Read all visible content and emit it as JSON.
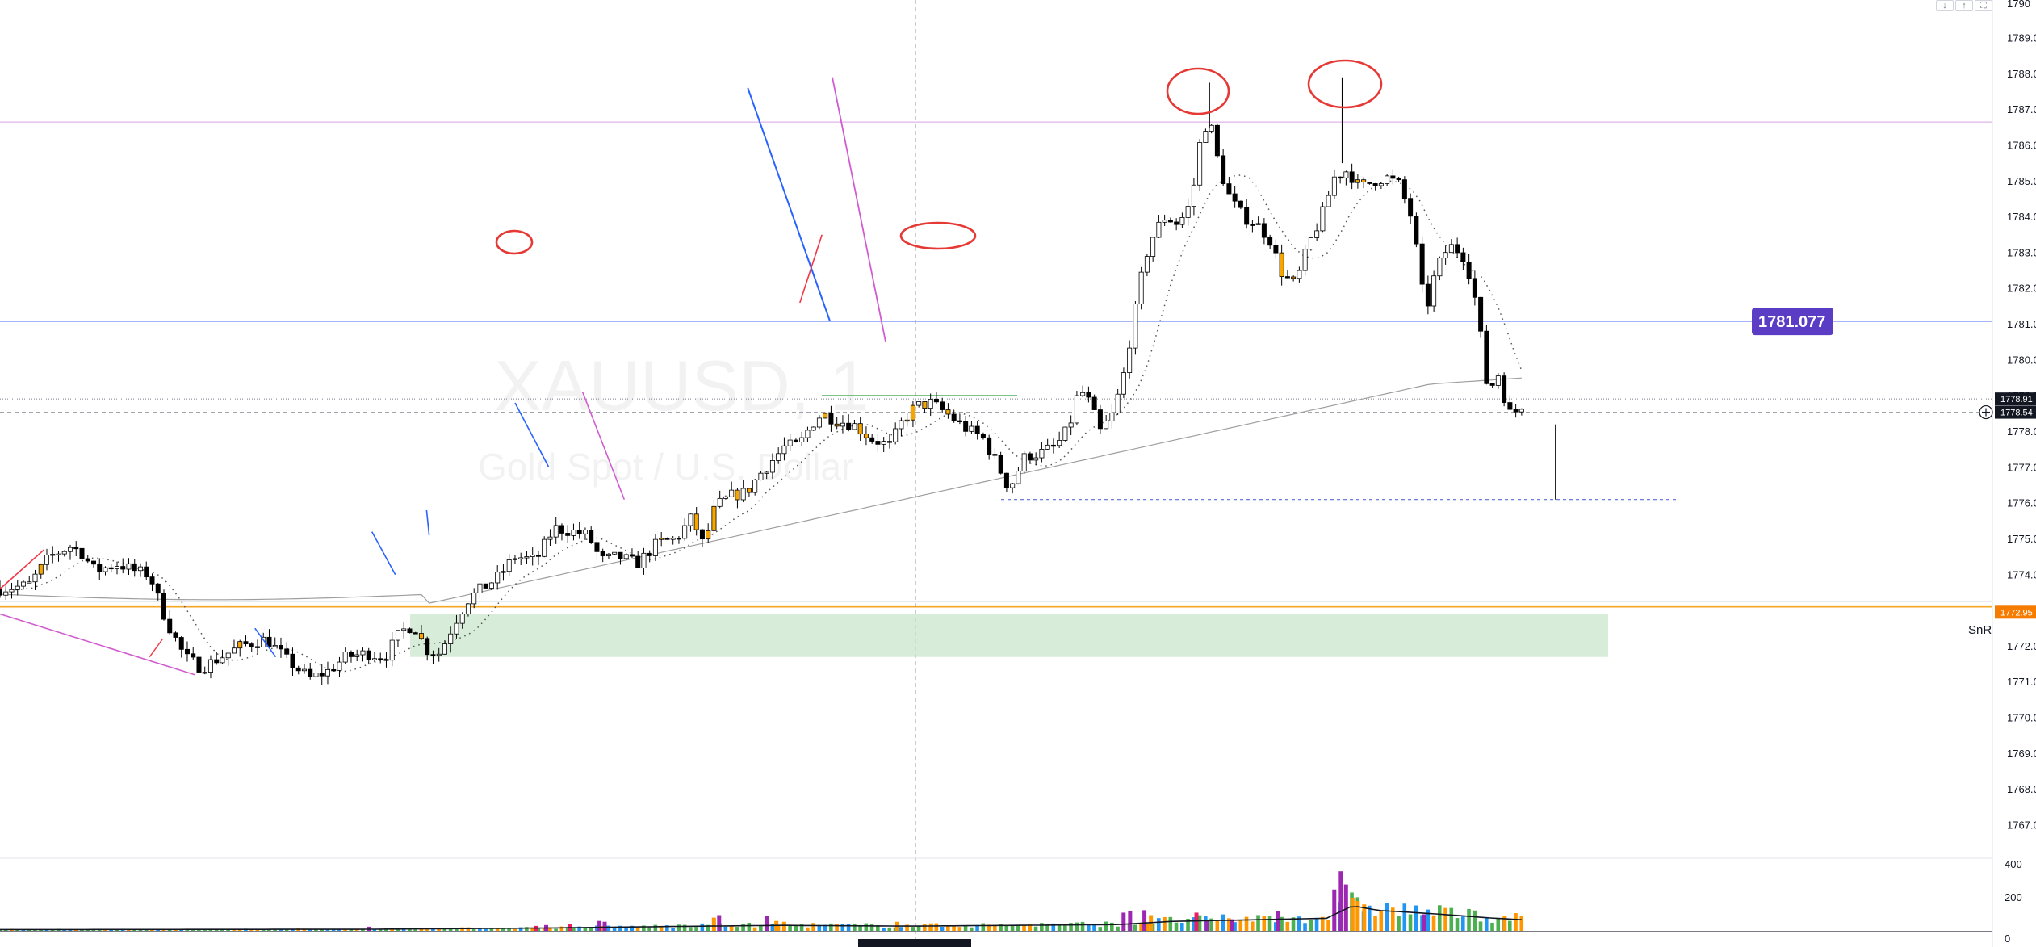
{
  "watermark": {
    "symbol": "XAUUSD, 1",
    "description": "Gold Spot / U.S. Dollar"
  },
  "toolbar": {
    "buttons": [
      {
        "name": "scroll-down-button",
        "icon": "arrow-down-icon",
        "glyph": "↓"
      },
      {
        "name": "scroll-up-button",
        "icon": "arrow-up-icon",
        "glyph": "↑"
      },
      {
        "name": "fullscreen-button",
        "icon": "fullscreen-icon",
        "glyph": "⛶"
      }
    ]
  },
  "colors": {
    "up": "#ffffff",
    "down": "#000000",
    "highlight": "#f7a600",
    "grid_line": "#e0e3eb",
    "blue": "#2962ff",
    "magenta": "#d05cd0",
    "red": "#f23645",
    "orange": "#f57c00",
    "purple": "#5b3cc4",
    "snr_zone": "#c8e6c9",
    "vol_green": "#4caf50",
    "vol_blue": "#2196f3",
    "vol_orange": "#ff9800",
    "vol_purple": "#9c27b0",
    "vol_pink": "#e91e63"
  },
  "chart_data": {
    "type": "candlestick",
    "title": "",
    "symbol": "XAUUSD",
    "interval": "1",
    "description": "Gold Spot / U.S. Dollar",
    "ylim": [
      1766.0,
      1790.0
    ],
    "y_ticks": [
      "1767.00",
      "1768.00",
      "1769.00",
      "1770.00",
      "1771.00",
      "1772.00",
      "1773.00",
      "1774.00",
      "1775.00",
      "1776.00",
      "1777.00",
      "1778.00",
      "1779.00",
      "1780.00",
      "1781.00",
      "1782.00",
      "1783.00",
      "1784.00",
      "1785.00",
      "1786.00",
      "1787.00",
      "1788.00",
      "1789.00"
    ],
    "top_tick_partial": "1790",
    "price_labels": [
      {
        "text": "1781.077",
        "value": 1781.077
      },
      {
        "text": "1778.91",
        "value": 1778.91
      },
      {
        "text": "1778.54",
        "value": 1778.54
      },
      {
        "text": "1772.95",
        "value": 1772.95
      }
    ],
    "horizontal_levels": [
      {
        "value": 1786.65,
        "color": "magenta"
      },
      {
        "value": 1781.077,
        "color": "blue"
      },
      {
        "value": 1778.91,
        "style": "dotted"
      },
      {
        "value": 1778.54,
        "style": "dashed"
      },
      {
        "value": 1773.1,
        "color": "orange"
      }
    ],
    "snr_zone": {
      "label": "SnR",
      "from": 1771.7,
      "to": 1772.9
    },
    "volume_axis_ticks": [
      "0",
      "200",
      "400"
    ],
    "volume_max": 450,
    "anchors": [
      [
        0,
        1773.6
      ],
      [
        22,
        1773.7
      ],
      [
        38,
        1774.5
      ],
      [
        55,
        1774.8
      ],
      [
        63,
        1774.6
      ],
      [
        73,
        1774.1
      ],
      [
        91,
        1774.3
      ],
      [
        104,
        1774.1
      ],
      [
        115,
        1774.0
      ],
      [
        128,
        1772.7
      ],
      [
        142,
        1771.7
      ],
      [
        155,
        1771.4
      ],
      [
        165,
        1771.6
      ],
      [
        185,
        1772.0
      ],
      [
        205,
        1772.2
      ],
      [
        221,
        1771.6
      ],
      [
        238,
        1771.1
      ],
      [
        252,
        1771.3
      ],
      [
        266,
        1771.7
      ],
      [
        282,
        1771.8
      ],
      [
        296,
        1771.7
      ],
      [
        308,
        1772.4
      ],
      [
        318,
        1772.6
      ],
      [
        328,
        1771.9
      ],
      [
        338,
        1771.8
      ],
      [
        350,
        1772.7
      ],
      [
        360,
        1773.3
      ],
      [
        370,
        1773.6
      ],
      [
        382,
        1773.9
      ],
      [
        396,
        1774.5
      ],
      [
        412,
        1774.4
      ],
      [
        426,
        1775.3
      ],
      [
        441,
        1775.2
      ],
      [
        452,
        1775.1
      ],
      [
        462,
        1774.4
      ],
      [
        476,
        1774.5
      ],
      [
        490,
        1774.3
      ],
      [
        506,
        1774.9
      ],
      [
        520,
        1775.0
      ],
      [
        532,
        1775.6
      ],
      [
        541,
        1774.8
      ],
      [
        550,
        1775.9
      ],
      [
        562,
        1776.2
      ],
      [
        574,
        1776.3
      ],
      [
        584,
        1776.8
      ],
      [
        594,
        1777.2
      ],
      [
        604,
        1777.6
      ],
      [
        614,
        1777.6
      ],
      [
        624,
        1778.2
      ],
      [
        632,
        1778.5
      ],
      [
        644,
        1778.3
      ],
      [
        656,
        1778.2
      ],
      [
        670,
        1777.8
      ],
      [
        684,
        1777.6
      ],
      [
        694,
        1778.3
      ],
      [
        704,
        1778.7
      ],
      [
        716,
        1778.8
      ],
      [
        728,
        1778.5
      ],
      [
        742,
        1778.1
      ],
      [
        756,
        1777.8
      ],
      [
        768,
        1777.0
      ],
      [
        776,
        1776.4
      ],
      [
        788,
        1777.3
      ],
      [
        800,
        1777.4
      ],
      [
        812,
        1777.6
      ],
      [
        822,
        1778.1
      ],
      [
        830,
        1779.2
      ],
      [
        838,
        1778.8
      ],
      [
        846,
        1778.0
      ],
      [
        856,
        1778.5
      ],
      [
        864,
        1779.6
      ],
      [
        872,
        1781.2
      ],
      [
        880,
        1782.8
      ],
      [
        888,
        1783.6
      ],
      [
        896,
        1784.0
      ],
      [
        906,
        1783.8
      ],
      [
        916,
        1784.4
      ],
      [
        924,
        1786.4
      ],
      [
        930,
        1786.7
      ],
      [
        938,
        1785.3
      ],
      [
        946,
        1784.5
      ],
      [
        956,
        1784.0
      ],
      [
        966,
        1783.8
      ],
      [
        976,
        1783.4
      ],
      [
        986,
        1782.4
      ],
      [
        996,
        1782.1
      ],
      [
        1006,
        1783.2
      ],
      [
        1016,
        1784.0
      ],
      [
        1026,
        1785.1
      ],
      [
        1036,
        1785.3
      ],
      [
        1046,
        1784.8
      ],
      [
        1056,
        1785.0
      ],
      [
        1066,
        1785.1
      ],
      [
        1076,
        1784.9
      ],
      [
        1086,
        1783.9
      ],
      [
        1096,
        1781.3
      ],
      [
        1104,
        1782.5
      ],
      [
        1114,
        1783.2
      ],
      [
        1124,
        1783.0
      ],
      [
        1132,
        1782.2
      ],
      [
        1138,
        1780.8
      ],
      [
        1144,
        1779.1
      ],
      [
        1152,
        1779.6
      ],
      [
        1160,
        1778.5
      ],
      [
        1168,
        1778.6
      ],
      [
        1172,
        1778.9
      ]
    ],
    "highlight_candles": [
      32,
      186,
      323,
      509,
      537,
      547,
      569,
      577,
      633,
      643,
      664,
      700,
      712,
      730,
      986,
      995,
      1044,
      1049
    ],
    "volume_profile": [
      [
        0,
        8
      ],
      [
        280,
        10
      ],
      [
        420,
        18
      ],
      [
        540,
        30
      ],
      [
        600,
        35
      ],
      [
        700,
        30
      ],
      [
        860,
        40
      ],
      [
        900,
        60
      ],
      [
        1020,
        80
      ],
      [
        1040,
        160
      ],
      [
        1060,
        130
      ],
      [
        1100,
        110
      ],
      [
        1150,
        80
      ],
      [
        1172,
        70
      ]
    ],
    "volume_spikes": [
      [
        284,
        25,
        "purple"
      ],
      [
        412,
        30,
        "pink"
      ],
      [
        420,
        35,
        "purple"
      ],
      [
        438,
        42,
        "pink"
      ],
      [
        461,
        60,
        "purple"
      ],
      [
        465,
        55,
        "purple"
      ],
      [
        549,
        80,
        "orange"
      ],
      [
        553,
        95,
        "purple"
      ],
      [
        590,
        90,
        "purple"
      ],
      [
        597,
        60,
        "orange"
      ],
      [
        603,
        55,
        "orange"
      ],
      [
        690,
        55,
        "orange"
      ],
      [
        716,
        45,
        "orange"
      ],
      [
        864,
        110,
        "purple"
      ],
      [
        869,
        120,
        "purple"
      ],
      [
        880,
        125,
        "purple"
      ],
      [
        885,
        95,
        "orange"
      ],
      [
        920,
        110,
        "pink"
      ],
      [
        928,
        60,
        "purple"
      ],
      [
        947,
        70,
        "purple"
      ],
      [
        983,
        120,
        "purple"
      ],
      [
        1026,
        250,
        "purple"
      ],
      [
        1031,
        360,
        "purple"
      ],
      [
        1035,
        280,
        "purple"
      ],
      [
        1040,
        200,
        "orange"
      ],
      [
        1044,
        180,
        "orange"
      ],
      [
        1049,
        160,
        "orange"
      ],
      [
        1095,
        100,
        "purple"
      ],
      [
        1157,
        90,
        "orange"
      ]
    ]
  }
}
